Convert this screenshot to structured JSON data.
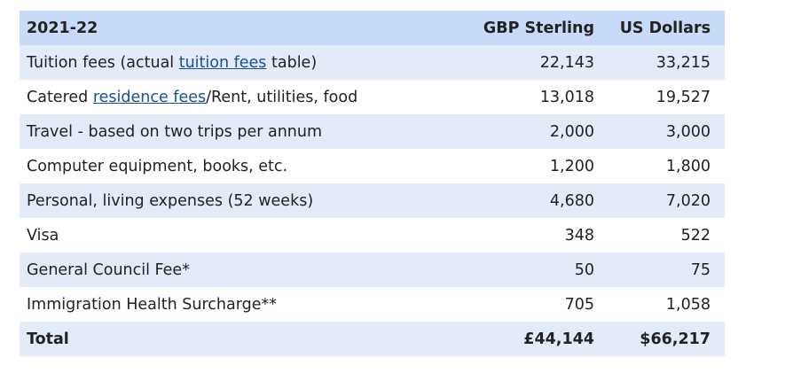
{
  "table": {
    "header": {
      "year": "2021-22",
      "gbp": "GBP Sterling",
      "usd": "US Dollars"
    },
    "rows": [
      {
        "label_pre": "Tuition fees (actual ",
        "link": "tuition fees",
        "label_post": " table)",
        "gbp": "22,143",
        "usd": "33,215"
      },
      {
        "label_pre": "Catered ",
        "link": "residence fees",
        "label_post": "/Rent, utilities, food",
        "gbp": "13,018",
        "usd": "19,527"
      },
      {
        "label": "Travel - based on two trips per annum",
        "gbp": "2,000",
        "usd": "3,000"
      },
      {
        "label": "Computer equipment, books, etc.",
        "gbp": "1,200",
        "usd": "1,800"
      },
      {
        "label": "Personal, living expenses (52 weeks)",
        "gbp": "4,680",
        "usd": "7,020"
      },
      {
        "label": "Visa",
        "gbp": "348",
        "usd": "522"
      },
      {
        "label": "General Council Fee*",
        "gbp": "50",
        "usd": "75"
      },
      {
        "label": "Immigration Health Surcharge**",
        "gbp": "705",
        "usd": "1,058"
      }
    ],
    "total": {
      "label": "Total",
      "gbp": "£44,144",
      "usd": "$66,217"
    }
  },
  "colors": {
    "header_bg": "#c7daf7",
    "shaded_row_bg": "#e3eaf8",
    "plain_row_bg": "#ffffff",
    "link": "#1a4f9c"
  }
}
